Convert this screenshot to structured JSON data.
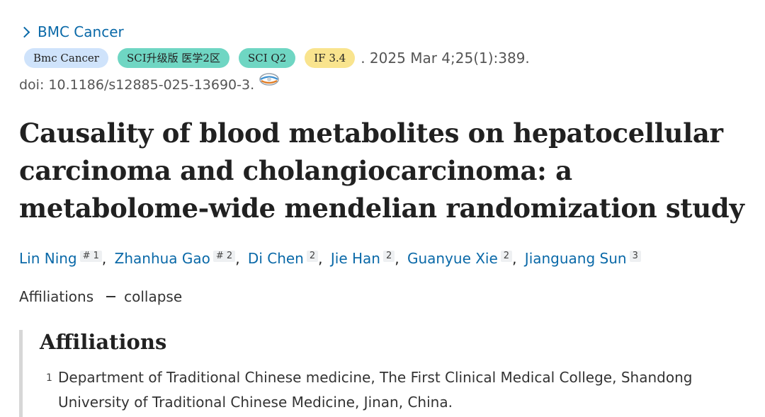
{
  "journal_link": "BMC Cancer",
  "badges": {
    "journal": "Bmc Cancer",
    "sci_level": "SCI升级版 医学2区",
    "sci_quartile": "SCI Q2",
    "impact_factor": "IF 3.4"
  },
  "citation": ". 2025 Mar 4;25(1):389.",
  "doi": "doi: 10.1186/s12885-025-13690-3.",
  "title": "Causality of blood metabolites on hepatocellular carcinoma and cholangiocarcinoma: a metabolome-wide mendelian randomization study",
  "authors": [
    {
      "name": "Lin Ning",
      "sup": "# 1"
    },
    {
      "name": "Zhanhua Gao",
      "sup": "# 2"
    },
    {
      "name": "Di Chen",
      "sup": "2"
    },
    {
      "name": "Jie Han",
      "sup": "2"
    },
    {
      "name": "Guanyue Xie",
      "sup": "2"
    },
    {
      "name": "Jianguang Sun",
      "sup": "3"
    }
  ],
  "affiliations_toggle": {
    "label": "Affiliations",
    "action": "collapse"
  },
  "affiliations_heading": "Affiliations",
  "affiliations": [
    {
      "number": "1",
      "text": "Department of Traditional Chinese medicine, The First Clinical Medical College, Shandong University of Traditional Chinese Medicine, Jinan, China."
    }
  ],
  "colors": {
    "link": "#0a69a8",
    "badge_journal": "#cfe3fb",
    "badge_sci": "#6fd6c3",
    "badge_if": "#f9e48e"
  },
  "icons": {
    "journal_chevron": "chevron-right-icon",
    "doi_icon": "europe-pmc-icon"
  }
}
